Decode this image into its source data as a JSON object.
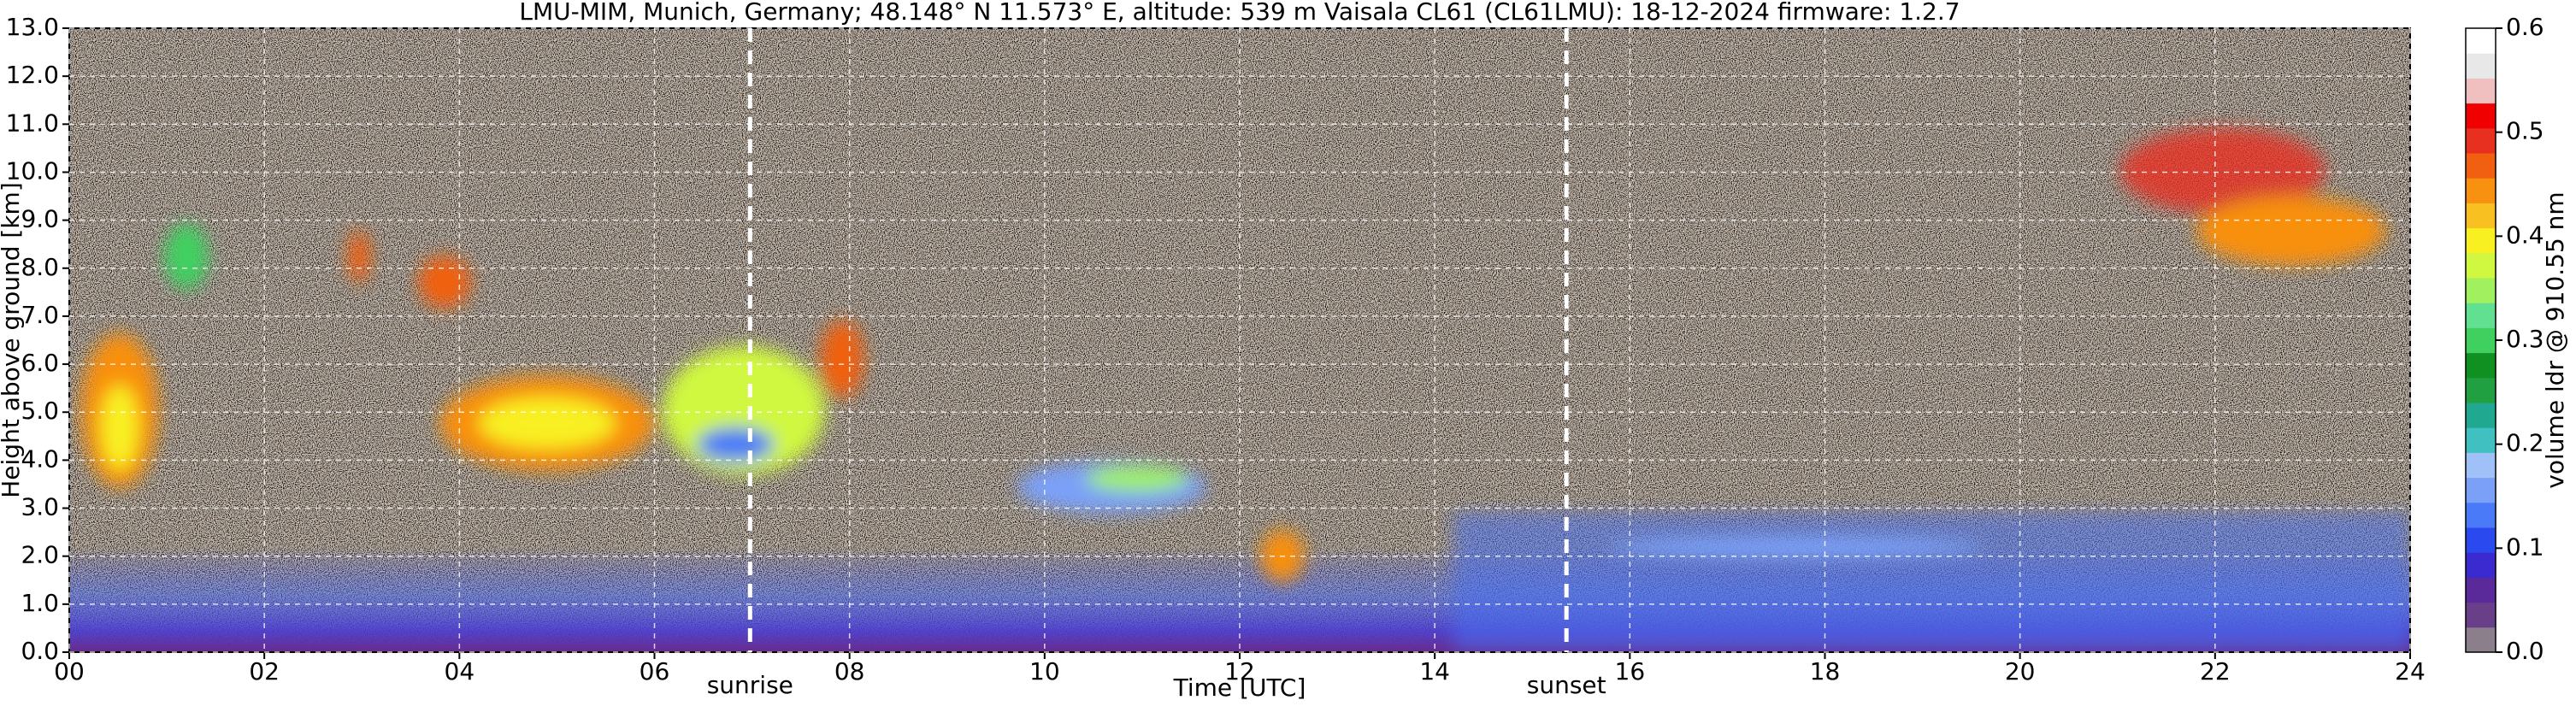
{
  "chart_data": {
    "type": "heatmap",
    "title": "LMU-MIM, Munich, Germany; 48.148° N 11.573° E, altitude: 539 m    Vaisala CL61 (CL61LMU): 18-12-2024    firmware: 1.2.7",
    "x_label": "Time [UTC]",
    "y_label": "Height above ground [km]",
    "xlim": [
      0,
      24
    ],
    "xticks": [
      {
        "value": 0,
        "label": "00"
      },
      {
        "value": 2,
        "label": "02"
      },
      {
        "value": 4,
        "label": "04"
      },
      {
        "value": 6,
        "label": "06"
      },
      {
        "value": 8,
        "label": "08"
      },
      {
        "value": 10,
        "label": "10"
      },
      {
        "value": 12,
        "label": "12"
      },
      {
        "value": 14,
        "label": "14"
      },
      {
        "value": 16,
        "label": "16"
      },
      {
        "value": 18,
        "label": "18"
      },
      {
        "value": 20,
        "label": "20"
      },
      {
        "value": 22,
        "label": "22"
      },
      {
        "value": 24,
        "label": "24"
      }
    ],
    "ylim": [
      0,
      13
    ],
    "yticks": [
      {
        "value": 0,
        "label": "0.0"
      },
      {
        "value": 1,
        "label": "1.0"
      },
      {
        "value": 2,
        "label": "2.0"
      },
      {
        "value": 3,
        "label": "3.0"
      },
      {
        "value": 4,
        "label": "4.0"
      },
      {
        "value": 5,
        "label": "5.0"
      },
      {
        "value": 6,
        "label": "6.0"
      },
      {
        "value": 7,
        "label": "7.0"
      },
      {
        "value": 8,
        "label": "8.0"
      },
      {
        "value": 9,
        "label": "9.0"
      },
      {
        "value": 10,
        "label": "10.0"
      },
      {
        "value": 11,
        "label": "11.0"
      },
      {
        "value": 12,
        "label": "12.0"
      },
      {
        "value": 13,
        "label": "13.0"
      }
    ],
    "grid": true,
    "annotations": [
      {
        "x": 6.98,
        "label": "sunrise"
      },
      {
        "x": 15.35,
        "label": "sunset"
      }
    ],
    "colorbar_label": "volume ldr @ 910.55 nm",
    "clim": [
      0,
      0.6
    ],
    "colorbar_ticks": [
      {
        "value": 0,
        "label": "0.0"
      },
      {
        "value": 0.1,
        "label": "0.1"
      },
      {
        "value": 0.2,
        "label": "0.2"
      },
      {
        "value": 0.3,
        "label": "0.3"
      },
      {
        "value": 0.4,
        "label": "0.4"
      },
      {
        "value": 0.5,
        "label": "0.5"
      },
      {
        "value": 0.6,
        "label": "0.6"
      }
    ],
    "colorbar_colors": [
      "#8c7f8c",
      "#6a3f8a",
      "#5a2a9a",
      "#3a2ad0",
      "#2a4af0",
      "#4a7af8",
      "#7aa0f8",
      "#a0c0f8",
      "#40c0c0",
      "#20a890",
      "#20a040",
      "#109020",
      "#40d060",
      "#60e090",
      "#a0f060",
      "#d0f840",
      "#f8f020",
      "#f8c020",
      "#f89010",
      "#f06010",
      "#e83020",
      "#f00000",
      "#f0c0c0",
      "#e8e8e8",
      "#ffffff"
    ]
  }
}
